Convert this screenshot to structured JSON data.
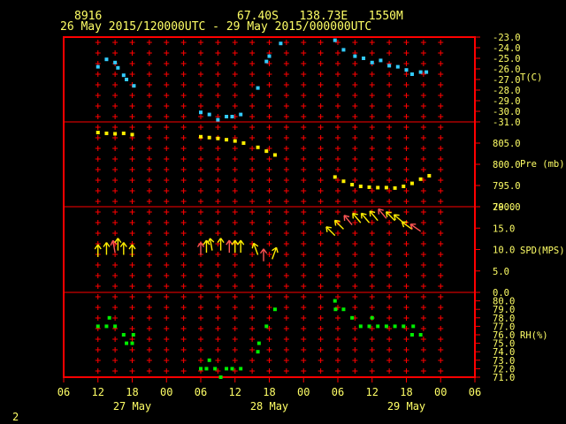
{
  "header": {
    "station": "8916",
    "location": "67.40S   138.73E   1550M",
    "time_range": "26 May 2015/120000UTC - 29 May 2015/000000UTC"
  },
  "page_number": "2",
  "colors": {
    "background": "#000000",
    "frame": "#ff0000",
    "text": "#ffff66",
    "temperature": "#33ccff",
    "pressure": "#ffee00",
    "wind": "#ffee00",
    "wind_alt": "#ff5555",
    "humidity": "#00ee00"
  },
  "chart_data": {
    "type": "scatter",
    "x_axis": {
      "tick_labels": [
        "06",
        "12",
        "18",
        "00",
        "06",
        "12",
        "18",
        "00",
        "06",
        "12",
        "18",
        "00",
        "06"
      ],
      "day_labels": [
        {
          "label": "27 May",
          "hour": 18
        },
        {
          "label": "28 May",
          "hour": 42
        },
        {
          "label": "29 May",
          "hour": 66
        }
      ],
      "xlim_hours_from_26May00": [
        6,
        78
      ]
    },
    "panels": [
      {
        "name": "T(C)",
        "ylim": [
          -31,
          -23
        ],
        "ticks": [
          "-23.0",
          "-24.0",
          "-25.0",
          "-26.0",
          "-27.0",
          "-28.0",
          "-29.0",
          "-30.0",
          "-31.0"
        ],
        "points": [
          [
            12,
            -25.8
          ],
          [
            13.5,
            -25.1
          ],
          [
            15,
            -25.4
          ],
          [
            15.5,
            -25.9
          ],
          [
            16.5,
            -26.6
          ],
          [
            17,
            -27.0
          ],
          [
            18.3,
            -27.6
          ],
          [
            30,
            -30.1
          ],
          [
            31.5,
            -30.3
          ],
          [
            33,
            -30.8
          ],
          [
            34.5,
            -30.5
          ],
          [
            35.5,
            -30.5
          ],
          [
            37,
            -30.3
          ],
          [
            40,
            -27.8
          ],
          [
            41.5,
            -25.3
          ],
          [
            42,
            -24.8
          ],
          [
            44,
            -23.6
          ],
          [
            53.5,
            -23.3
          ],
          [
            55,
            -24.2
          ],
          [
            57,
            -24.8
          ],
          [
            58.5,
            -25.0
          ],
          [
            60,
            -25.4
          ],
          [
            61.5,
            -25.2
          ],
          [
            63,
            -25.7
          ],
          [
            64.5,
            -25.8
          ],
          [
            66,
            -26.1
          ],
          [
            67,
            -26.5
          ],
          [
            68.5,
            -26.3
          ],
          [
            69.5,
            -26.3
          ]
        ]
      },
      {
        "name": "Pre (mb)",
        "ylim": [
          790,
          810
        ],
        "ticks": [
          "790.0",
          "795.0",
          "800.0",
          "805.0"
        ],
        "tick_values": [
          790,
          795,
          800,
          805
        ],
        "points": [
          [
            12,
            807.5
          ],
          [
            13.5,
            807.3
          ],
          [
            15,
            807.2
          ],
          [
            16.5,
            807.3
          ],
          [
            18,
            807.0
          ],
          [
            30,
            806.5
          ],
          [
            31.5,
            806.3
          ],
          [
            33,
            806.1
          ],
          [
            34.5,
            805.8
          ],
          [
            36,
            805.5
          ],
          [
            37.5,
            805.0
          ],
          [
            40,
            804.0
          ],
          [
            41.5,
            803.1
          ],
          [
            43,
            802.2
          ],
          [
            53.5,
            797.0
          ],
          [
            55,
            796.0
          ],
          [
            56.5,
            795.2
          ],
          [
            58,
            794.8
          ],
          [
            59.5,
            794.6
          ],
          [
            61,
            794.5
          ],
          [
            62.5,
            794.5
          ],
          [
            64,
            794.4
          ],
          [
            65.5,
            794.8
          ],
          [
            67,
            795.5
          ],
          [
            68.5,
            796.5
          ],
          [
            70,
            797.3
          ]
        ]
      },
      {
        "name": "SPD(MPS)",
        "ylim": [
          0,
          20
        ],
        "ticks": [
          "0.0",
          "5.0",
          "10.0",
          "15.0",
          "20.0"
        ],
        "tick_values": [
          0,
          5,
          10,
          15,
          20
        ],
        "barbs": [
          [
            12,
            9.5,
            0
          ],
          [
            13.5,
            10,
            0
          ],
          [
            15,
            10.5,
            -10
          ],
          [
            15.5,
            11,
            0
          ],
          [
            16.5,
            10,
            0
          ],
          [
            18,
            9.5,
            0
          ],
          [
            30,
            10,
            0
          ],
          [
            31,
            10.5,
            0
          ],
          [
            32,
            11,
            -10
          ],
          [
            33.5,
            11,
            0
          ],
          [
            35,
            10.5,
            0
          ],
          [
            36,
            10.5,
            0
          ],
          [
            37,
            10.5,
            0
          ],
          [
            40,
            10,
            -20
          ],
          [
            41,
            8.5,
            0
          ],
          [
            42.5,
            9,
            20
          ],
          [
            53.5,
            14.5,
            -45
          ],
          [
            55,
            16,
            -45
          ],
          [
            56.5,
            17,
            -40
          ],
          [
            58,
            17.5,
            -40
          ],
          [
            59.5,
            17.5,
            -40
          ],
          [
            61,
            18,
            -40
          ],
          [
            62.5,
            18.5,
            -40
          ],
          [
            64,
            18,
            -45
          ],
          [
            65.5,
            17.5,
            -50
          ],
          [
            67,
            16,
            -55
          ],
          [
            68.5,
            15.5,
            -55
          ]
        ]
      },
      {
        "name": "RH(%)",
        "ylim": [
          71,
          81
        ],
        "ticks": [
          "71.0",
          "72.0",
          "73.0",
          "74.0",
          "75.0",
          "76.0",
          "77.0",
          "78.0",
          "79.0",
          "80.0"
        ],
        "points": [
          [
            12,
            77
          ],
          [
            13.5,
            77
          ],
          [
            14,
            78
          ],
          [
            15,
            77
          ],
          [
            16.5,
            76
          ],
          [
            17,
            75
          ],
          [
            18,
            75
          ],
          [
            18.2,
            76
          ],
          [
            30,
            72
          ],
          [
            31,
            72
          ],
          [
            31.5,
            73
          ],
          [
            32.5,
            72
          ],
          [
            33.5,
            71
          ],
          [
            34.5,
            72
          ],
          [
            35.5,
            72
          ],
          [
            37,
            72
          ],
          [
            40,
            74
          ],
          [
            40.2,
            75
          ],
          [
            41.5,
            77
          ],
          [
            43,
            79
          ],
          [
            53.5,
            80
          ],
          [
            53.6,
            79
          ],
          [
            55,
            79
          ],
          [
            56.5,
            78
          ],
          [
            58,
            77
          ],
          [
            59.5,
            77
          ],
          [
            60,
            78
          ],
          [
            61,
            77
          ],
          [
            62.5,
            77
          ],
          [
            64,
            77
          ],
          [
            65.5,
            77
          ],
          [
            67,
            76
          ],
          [
            67.2,
            77
          ],
          [
            68.5,
            76
          ]
        ]
      }
    ]
  }
}
